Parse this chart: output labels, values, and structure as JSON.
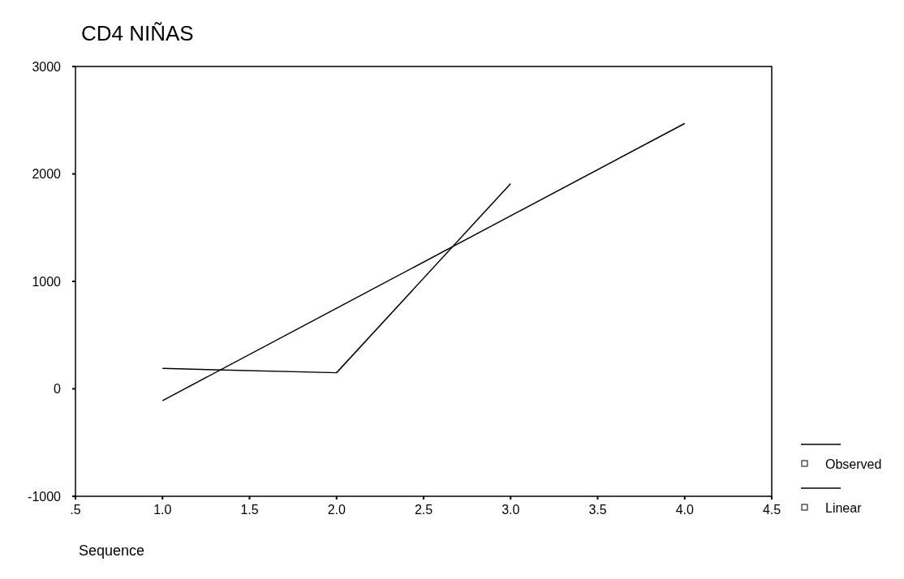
{
  "chart_data": {
    "type": "line",
    "title": "CD4 NIÑAS",
    "xlabel": "Sequence",
    "x": [
      1,
      2,
      3
    ],
    "series": [
      {
        "name": "Observed",
        "color": "#000000",
        "values": [
          190,
          150,
          1910
        ]
      },
      {
        "name": "Linear",
        "color": "#000000",
        "x": [
          1,
          2,
          3,
          4
        ],
        "values": [
          -110,
          750,
          1610,
          2470
        ]
      }
    ],
    "xlim": [
      0.5,
      4.5
    ],
    "xticks": [
      {
        "value": 0.5,
        "label": ".5"
      },
      {
        "value": 1,
        "label": "1.0"
      },
      {
        "value": 1.5,
        "label": "1.5"
      },
      {
        "value": 2,
        "label": "2.0"
      },
      {
        "value": 2.5,
        "label": "2.5"
      },
      {
        "value": 3,
        "label": "3.0"
      },
      {
        "value": 3.5,
        "label": "3.5"
      },
      {
        "value": 4,
        "label": "4.0"
      },
      {
        "value": 4.5,
        "label": "4.5"
      }
    ],
    "ylim": [
      -1000,
      3000
    ],
    "yticks": [
      -1000,
      0,
      1000,
      2000,
      3000
    ],
    "grid": false,
    "legend": "right",
    "line_style": "solid"
  }
}
